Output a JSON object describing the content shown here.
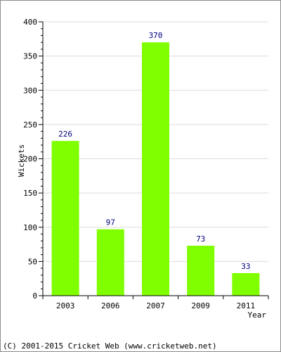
{
  "chart_data": {
    "type": "bar",
    "categories": [
      "2003",
      "2006",
      "2007",
      "2009",
      "2011"
    ],
    "series": [
      {
        "values": [
          226,
          97,
          370,
          73,
          33
        ],
        "color": "#7fff00"
      }
    ],
    "xlabel": "Year",
    "ylabel": "Wickets",
    "ylim": [
      0,
      400
    ],
    "yticks": [
      0,
      50,
      100,
      150,
      200,
      250,
      300,
      350,
      400
    ],
    "grid": true,
    "data_labels": true,
    "legend": "none"
  },
  "footer": "(C) 2001-2015 Cricket Web (www.cricketweb.net)",
  "colors": {
    "bar": "#7fff00",
    "data_label": "#000080",
    "grid": "#dcdcdc",
    "axis": "#000000"
  }
}
